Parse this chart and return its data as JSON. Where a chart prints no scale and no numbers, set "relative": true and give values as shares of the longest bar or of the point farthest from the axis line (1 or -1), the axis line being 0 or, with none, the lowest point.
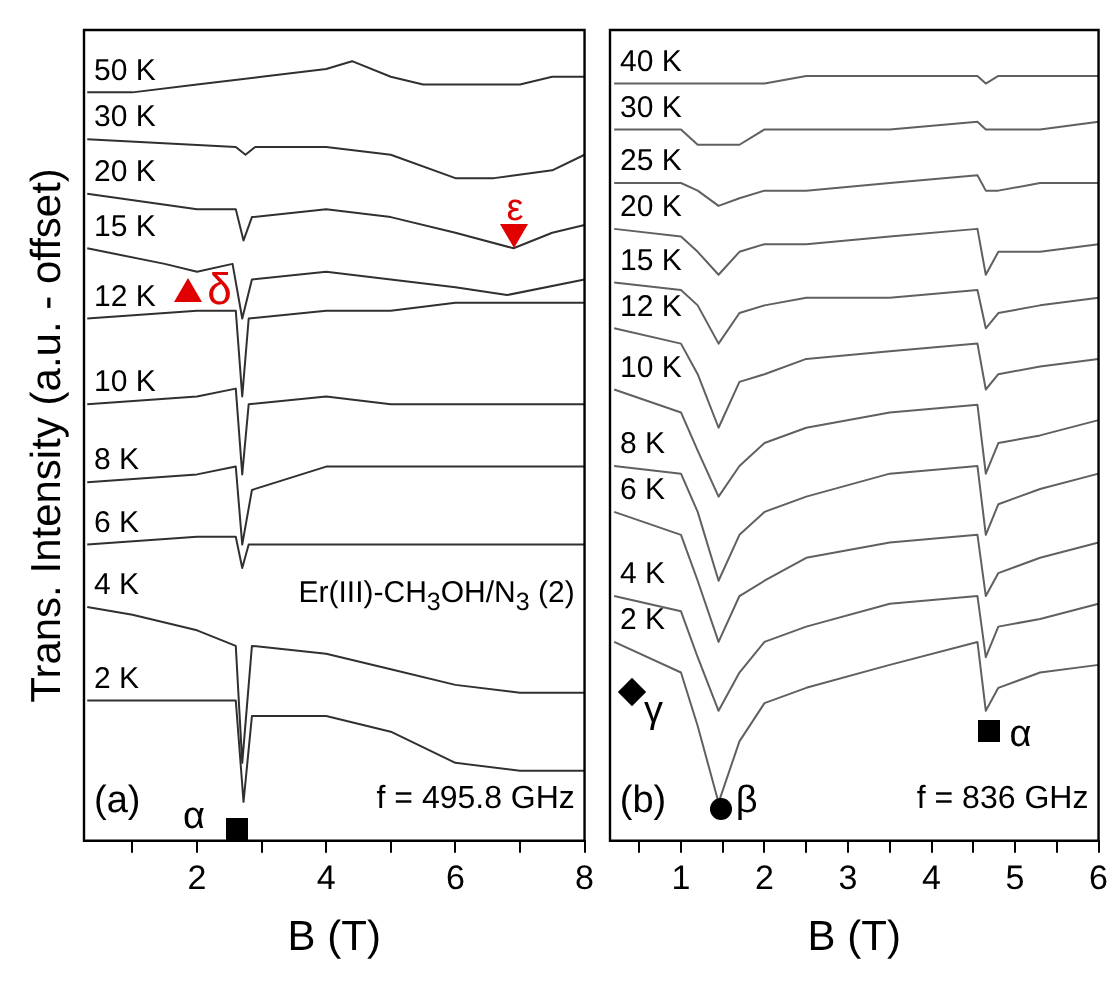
{
  "chart_data": [
    {
      "type": "line",
      "relative": true,
      "ylabel": "Trans. Intensity (a.u. - offset)",
      "xlabel": "B (T)",
      "xlim": [
        0.25,
        8
      ],
      "xticks": [
        {
          "value": 1,
          "label": null
        },
        2,
        {
          "value": 3,
          "label": null
        },
        4,
        {
          "value": 5,
          "label": null
        },
        6,
        {
          "value": 7,
          "label": null
        },
        8
      ],
      "series": [
        {
          "name": "50 K",
          "color": "#303030",
          "x": [
            0.3,
            1,
            2,
            3,
            4,
            4.4,
            5,
            5.5,
            6,
            6.5,
            7,
            7.5,
            8
          ],
          "values": [
            0.96,
            0.96,
            0.97,
            0.98,
            0.99,
            1,
            0.98,
            0.97,
            0.97,
            0.97,
            0.97,
            0.98,
            0.98
          ]
        },
        {
          "name": "30 K",
          "color": "#303030",
          "x": [
            0.3,
            2.6,
            2.75,
            2.9,
            4,
            5,
            6,
            6.6,
            7.5,
            8
          ],
          "values": [
            0.9,
            0.89,
            0.88,
            0.89,
            0.89,
            0.88,
            0.85,
            0.85,
            0.86,
            0.88
          ]
        },
        {
          "name": "20 K",
          "color": "#303030",
          "x": [
            0.3,
            2,
            2.6,
            2.72,
            2.85,
            4,
            5,
            6,
            6.9,
            7.5,
            8
          ],
          "values": [
            0.83,
            0.81,
            0.81,
            0.77,
            0.8,
            0.81,
            0.8,
            0.78,
            0.76,
            0.78,
            0.79
          ]
        },
        {
          "name": "15 K",
          "color": "#303030",
          "x": [
            0.3,
            1.5,
            2,
            2.55,
            2.7,
            2.85,
            4,
            5,
            6,
            6.8,
            8
          ],
          "values": [
            0.76,
            0.74,
            0.73,
            0.74,
            0.67,
            0.72,
            0.73,
            0.72,
            0.71,
            0.7,
            0.72
          ]
        },
        {
          "name": "12 K",
          "color": "#303030",
          "x": [
            0.3,
            2,
            2.6,
            2.7,
            2.8,
            4,
            5,
            6,
            8
          ],
          "values": [
            0.67,
            0.68,
            0.68,
            0.57,
            0.67,
            0.68,
            0.68,
            0.69,
            0.69
          ]
        },
        {
          "name": "10 K",
          "color": "#303030",
          "x": [
            0.3,
            2,
            2.6,
            2.7,
            2.8,
            4,
            5,
            6,
            8
          ],
          "values": [
            0.56,
            0.57,
            0.58,
            0.47,
            0.56,
            0.57,
            0.56,
            0.56,
            0.56
          ]
        },
        {
          "name": "8 K",
          "color": "#303030",
          "x": [
            0.3,
            2,
            2.6,
            2.7,
            2.85,
            4,
            6,
            8
          ],
          "values": [
            0.46,
            0.47,
            0.48,
            0.38,
            0.45,
            0.48,
            0.48,
            0.48
          ]
        },
        {
          "name": "6 K",
          "color": "#303030",
          "x": [
            0.3,
            2,
            2.6,
            2.7,
            2.8,
            4,
            6,
            8
          ],
          "values": [
            0.38,
            0.39,
            0.39,
            0.35,
            0.38,
            0.38,
            0.38,
            0.38
          ]
        },
        {
          "name": "4 K",
          "color": "#303030",
          "x": [
            0.3,
            1,
            2,
            2.6,
            2.7,
            2.85,
            4,
            5,
            6,
            7,
            8
          ],
          "values": [
            0.3,
            0.29,
            0.27,
            0.25,
            0.1,
            0.25,
            0.24,
            0.22,
            0.2,
            0.19,
            0.19
          ]
        },
        {
          "name": "2 K",
          "color": "#303030",
          "x": [
            0.3,
            2,
            2.6,
            2.72,
            2.85,
            4,
            5,
            6,
            7,
            8
          ],
          "values": [
            0.18,
            0.18,
            0.18,
            0.05,
            0.16,
            0.16,
            0.14,
            0.1,
            0.09,
            0.09
          ]
        }
      ],
      "annotations": [
        "α",
        "δ",
        "ε",
        "(a)",
        "f = 495.8 GHz",
        "Er(III)-CH$_{3}$OH/N$_{3}$ (2)"
      ]
    },
    {
      "type": "line",
      "relative": true,
      "xlabel": "B (T)",
      "xlim": [
        0.15,
        6
      ],
      "xticks": [
        {
          "value": 0.5,
          "label": null
        },
        1,
        {
          "value": 1.5,
          "label": null
        },
        2,
        {
          "value": 2.5,
          "label": null
        },
        3,
        {
          "value": 3.5,
          "label": null
        },
        4,
        {
          "value": 4.5,
          "label": null
        },
        5,
        {
          "value": 5.5,
          "label": null
        },
        6
      ],
      "series": [
        {
          "name": "40 K",
          "color": "#606060",
          "x": [
            0.2,
            1,
            1.2,
            1.45,
            1.7,
            2,
            2.5,
            3.5,
            4.55,
            4.65,
            4.8,
            5.3,
            6
          ],
          "values": [
            0.99,
            0.99,
            0.99,
            0.99,
            0.99,
            0.99,
            1,
            1,
            1,
            0.99,
            1,
            1,
            1
          ]
        },
        {
          "name": "30 K",
          "color": "#606060",
          "x": [
            0.2,
            1,
            1.2,
            1.45,
            1.7,
            2,
            2.5,
            3.5,
            4.55,
            4.65,
            4.8,
            5.3,
            6
          ],
          "values": [
            0.93,
            0.93,
            0.91,
            0.91,
            0.91,
            0.93,
            0.93,
            0.93,
            0.94,
            0.93,
            0.93,
            0.93,
            0.94
          ]
        },
        {
          "name": "25 K",
          "color": "#606060",
          "x": [
            0.2,
            1,
            1.2,
            1.45,
            1.7,
            2,
            2.5,
            3.5,
            4.55,
            4.65,
            4.8,
            5.3,
            6
          ],
          "values": [
            0.86,
            0.86,
            0.85,
            0.83,
            0.84,
            0.85,
            0.85,
            0.86,
            0.87,
            0.85,
            0.85,
            0.86,
            0.86
          ]
        },
        {
          "name": "20 K",
          "color": "#606060",
          "x": [
            0.2,
            1,
            1.2,
            1.45,
            1.7,
            2,
            2.5,
            3.5,
            4.55,
            4.65,
            4.8,
            5.3,
            6
          ],
          "values": [
            0.8,
            0.79,
            0.77,
            0.74,
            0.77,
            0.78,
            0.78,
            0.79,
            0.8,
            0.74,
            0.77,
            0.77,
            0.78
          ]
        },
        {
          "name": "15 K",
          "color": "#606060",
          "x": [
            0.2,
            1,
            1.2,
            1.45,
            1.7,
            2,
            2.5,
            3.5,
            4.55,
            4.65,
            4.8,
            5.3,
            6
          ],
          "values": [
            0.73,
            0.72,
            0.7,
            0.65,
            0.69,
            0.7,
            0.71,
            0.71,
            0.72,
            0.67,
            0.69,
            0.7,
            0.71
          ]
        },
        {
          "name": "12 K",
          "color": "#606060",
          "x": [
            0.2,
            1,
            1.2,
            1.45,
            1.7,
            2,
            2.5,
            3.5,
            4.55,
            4.65,
            4.8,
            5.3,
            6
          ],
          "values": [
            0.67,
            0.65,
            0.61,
            0.54,
            0.6,
            0.61,
            0.63,
            0.64,
            0.65,
            0.59,
            0.61,
            0.62,
            0.63
          ]
        },
        {
          "name": "10 K",
          "color": "#606060",
          "x": [
            0.2,
            1,
            1.2,
            1.45,
            1.7,
            2,
            2.5,
            3.5,
            4.55,
            4.65,
            4.8,
            5.3,
            6
          ],
          "values": [
            0.59,
            0.56,
            0.51,
            0.45,
            0.49,
            0.52,
            0.54,
            0.56,
            0.57,
            0.48,
            0.52,
            0.53,
            0.55
          ]
        },
        {
          "name": "8 K",
          "color": "#606060",
          "x": [
            0.2,
            1,
            1.2,
            1.45,
            1.7,
            2,
            2.5,
            3.5,
            4.55,
            4.65,
            4.8,
            5.3,
            6
          ],
          "values": [
            0.49,
            0.48,
            0.43,
            0.34,
            0.4,
            0.43,
            0.45,
            0.48,
            0.49,
            0.4,
            0.44,
            0.46,
            0.48
          ]
        },
        {
          "name": "6 K",
          "color": "#606060",
          "x": [
            0.2,
            1,
            1.2,
            1.45,
            1.7,
            2,
            2.5,
            3.5,
            4.55,
            4.65,
            4.8,
            5.3,
            6
          ],
          "values": [
            0.43,
            0.4,
            0.34,
            0.26,
            0.32,
            0.34,
            0.37,
            0.39,
            0.4,
            0.32,
            0.35,
            0.37,
            0.39
          ]
        },
        {
          "name": "4 K",
          "color": "#606060",
          "x": [
            0.2,
            1,
            1.2,
            1.45,
            1.7,
            2,
            2.5,
            3.5,
            4.55,
            4.65,
            4.8,
            5.3,
            6
          ],
          "values": [
            0.32,
            0.3,
            0.24,
            0.17,
            0.22,
            0.26,
            0.28,
            0.31,
            0.32,
            0.24,
            0.28,
            0.29,
            0.31
          ]
        },
        {
          "name": "2 K",
          "color": "#606060",
          "x": [
            0.2,
            1,
            1.2,
            1.45,
            1.7,
            2,
            2.5,
            3.5,
            4.55,
            4.65,
            4.8,
            5.3,
            6
          ],
          "values": [
            0.26,
            0.22,
            0.15,
            0.05,
            0.13,
            0.18,
            0.2,
            0.23,
            0.26,
            0.17,
            0.2,
            0.22,
            0.23
          ]
        }
      ],
      "annotations": [
        "β",
        "γ",
        "α",
        "(b)",
        "f = 836 GHz"
      ]
    }
  ]
}
